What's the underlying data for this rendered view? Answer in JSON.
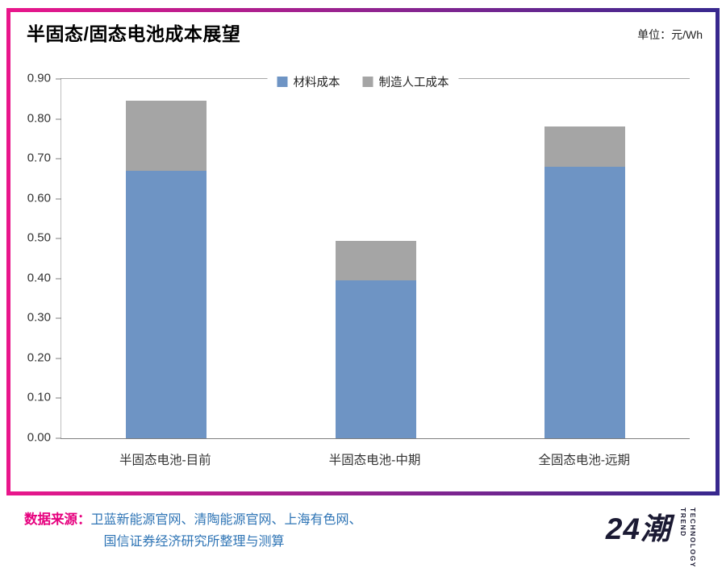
{
  "header": {
    "title": "半固态/固态电池成本展望",
    "unit_label": "单位：元/Wh"
  },
  "chart_data": {
    "type": "bar",
    "stacked": true,
    "title": "半固态/固态电池成本展望",
    "unit": "元/Wh",
    "categories": [
      "半固态电池-目前",
      "半固态电池-中期",
      "全固态电池-远期"
    ],
    "series": [
      {
        "name": "材料成本",
        "key": "material-cost",
        "color": "#6E94C4",
        "values": [
          0.67,
          0.395,
          0.68
        ]
      },
      {
        "name": "制造人工成本",
        "key": "manufacturing-labor-cost",
        "color": "#A5A5A5",
        "values": [
          0.175,
          0.1,
          0.1
        ]
      }
    ],
    "totals": [
      0.845,
      0.495,
      0.78
    ],
    "ylim": [
      0,
      0.9
    ],
    "ytick_step": 0.1,
    "legend_position": "top-center",
    "grid": false
  },
  "footer": {
    "source_label": "数据来源：",
    "source_lines": [
      "卫蓝新能源官网、清陶能源官网、上海有色网、",
      "国信证券经济研究所整理与测算"
    ],
    "logo_text": "24潮",
    "logo_words": [
      "TREND",
      "TECHNOLOGY"
    ]
  },
  "colors": {
    "bar_material": "#6E94C4",
    "bar_labor": "#A5A5A5",
    "frame_gradient_left": "#E9168B",
    "frame_gradient_right": "#38288E",
    "source_label": "#E6007E",
    "source_text": "#2E74B5",
    "logo": "#1B1A33"
  }
}
